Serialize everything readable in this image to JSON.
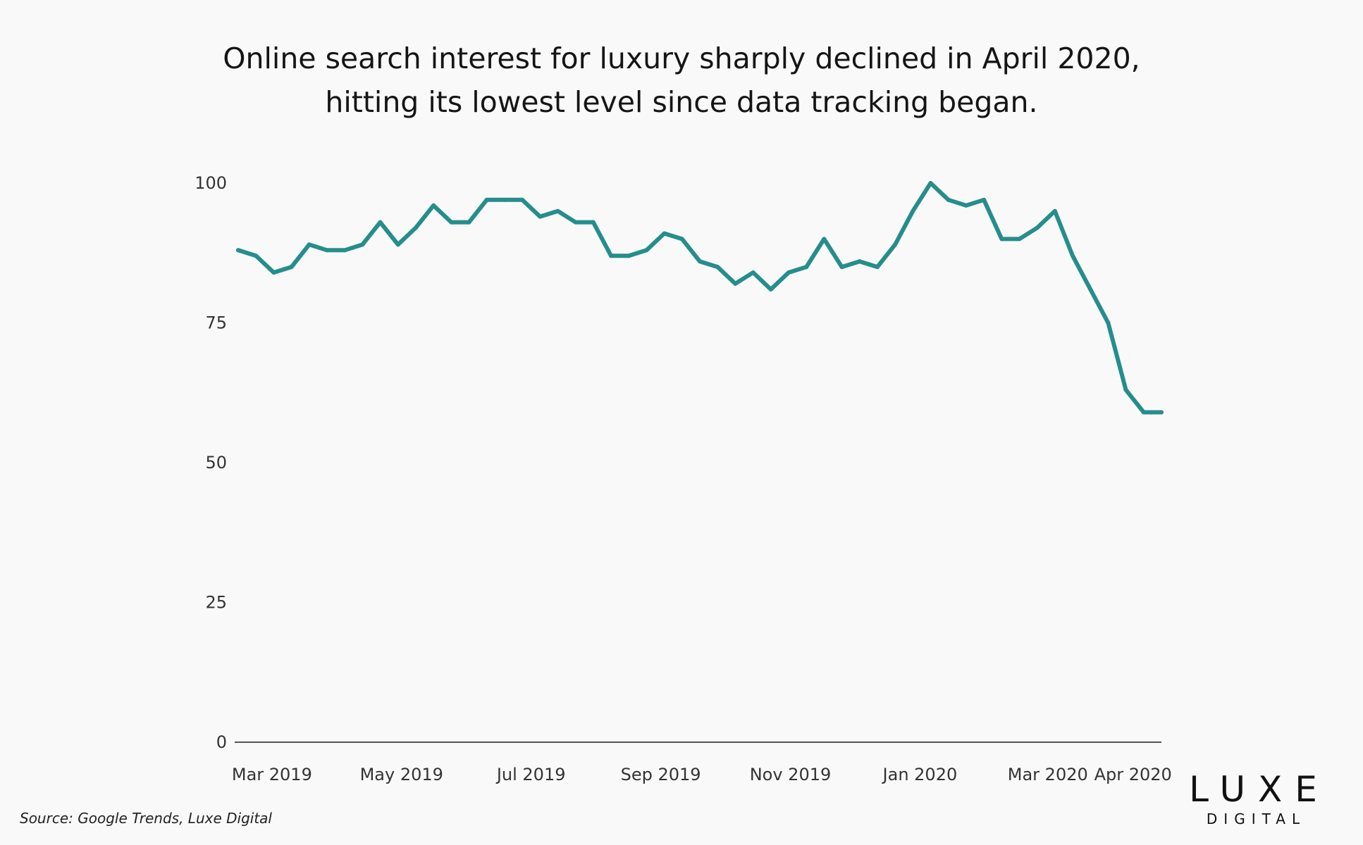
{
  "title_lines": [
    "Online search interest for luxury sharply declined in April 2020,",
    "hitting its lowest level since data tracking began."
  ],
  "source": "Source: Google Trends, Luxe Digital",
  "logo": {
    "main": "LUXE",
    "sub": "DIGITAL"
  },
  "colors": {
    "line": "#258e8c",
    "axis": "#555555",
    "background": "#f9f9f9"
  },
  "chart_data": {
    "type": "line",
    "title": "Online search interest for luxury sharply declined in April 2020, hitting its lowest level since data tracking began.",
    "xlabel": "",
    "ylabel": "",
    "ylim": [
      0,
      100
    ],
    "y_ticks": [
      0,
      25,
      50,
      75,
      100
    ],
    "x_ticks": [
      "Mar 2019",
      "May 2019",
      "Jul 2019",
      "Sep 2019",
      "Nov 2019",
      "Jan 2020",
      "Mar 2020",
      "Apr 2020"
    ],
    "x_tick_weeks": [
      1.9,
      9.2,
      16.5,
      23.8,
      31.1,
      38.4,
      45.6,
      50.4
    ],
    "grid": false,
    "series": [
      {
        "values": [
          88,
          87,
          84,
          85,
          89,
          88,
          88,
          89,
          93,
          89,
          92,
          96,
          93,
          93,
          97,
          97,
          97,
          94,
          95,
          93,
          93,
          87,
          87,
          88,
          91,
          90,
          86,
          85,
          82,
          84,
          81,
          84,
          85,
          90,
          85,
          86,
          85,
          89,
          95,
          100,
          97,
          96,
          97,
          90,
          90,
          92,
          95,
          87,
          81,
          75,
          63,
          59,
          59
        ]
      }
    ]
  }
}
